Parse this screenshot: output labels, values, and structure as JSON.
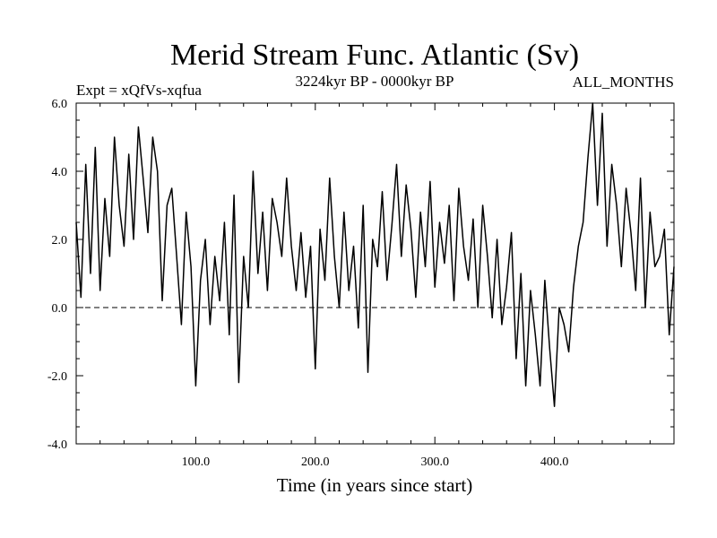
{
  "chart_data": {
    "type": "line",
    "title": "Merid Stream Func. Atlantic (Sv)",
    "subtitle_left": "Expt = xQfVs-xqfua",
    "subtitle_center": "3224kyr BP - 0000kyr BP",
    "subtitle_right": "ALL_MONTHS",
    "xlabel": "Time (in years since start)",
    "ylabel": "",
    "xlim": [
      0,
      500
    ],
    "ylim": [
      -4,
      6
    ],
    "x_tick_labels": [
      "100.0",
      "200.0",
      "300.0",
      "400.0"
    ],
    "x_tick_values": [
      100,
      200,
      300,
      400
    ],
    "y_tick_labels": [
      "-4.0",
      "-2.0",
      "0.0",
      "2.0",
      "4.0",
      "6.0"
    ],
    "y_tick_values": [
      -4,
      -2,
      0,
      2,
      4,
      6
    ],
    "reference_line": {
      "y": 0,
      "style": "dashed"
    },
    "series": [
      {
        "name": "Atlantic meridional stream function",
        "color": "#000000",
        "x": [
          0,
          4,
          8,
          12,
          16,
          20,
          24,
          28,
          32,
          36,
          40,
          44,
          48,
          52,
          56,
          60,
          64,
          68,
          72,
          76,
          80,
          84,
          88,
          92,
          96,
          100,
          104,
          108,
          112,
          116,
          120,
          124,
          128,
          132,
          136,
          140,
          144,
          148,
          152,
          156,
          160,
          164,
          168,
          172,
          176,
          180,
          184,
          188,
          192,
          196,
          200,
          204,
          208,
          212,
          216,
          220,
          224,
          228,
          232,
          236,
          240,
          244,
          248,
          252,
          256,
          260,
          264,
          268,
          272,
          276,
          280,
          284,
          288,
          292,
          296,
          300,
          304,
          308,
          312,
          316,
          320,
          324,
          328,
          332,
          336,
          340,
          344,
          348,
          352,
          356,
          360,
          364,
          368,
          372,
          376,
          380,
          384,
          388,
          392,
          396,
          400,
          404,
          408,
          412,
          416,
          420,
          424,
          428,
          432,
          436,
          440,
          444,
          448,
          452,
          456,
          460,
          464,
          468,
          472,
          476,
          480,
          484,
          488,
          492,
          496,
          500
        ],
        "values": [
          2.5,
          0.3,
          4.2,
          1.0,
          4.7,
          0.5,
          3.2,
          1.5,
          5.0,
          3.0,
          1.8,
          4.5,
          2.0,
          5.3,
          3.8,
          2.2,
          5.0,
          4.0,
          0.2,
          3.0,
          3.5,
          1.5,
          -0.5,
          2.8,
          1.2,
          -2.3,
          0.8,
          2.0,
          -0.5,
          1.5,
          0.2,
          2.5,
          -0.8,
          3.3,
          -2.2,
          1.5,
          0.0,
          4.0,
          1.0,
          2.8,
          0.5,
          3.2,
          2.5,
          1.5,
          3.8,
          1.8,
          0.5,
          2.2,
          0.3,
          1.8,
          -1.8,
          2.3,
          0.8,
          3.8,
          1.5,
          0.0,
          2.8,
          0.5,
          1.8,
          -0.6,
          3.0,
          -1.9,
          2.0,
          1.2,
          3.4,
          0.8,
          2.4,
          4.2,
          1.5,
          3.6,
          2.3,
          0.3,
          2.8,
          1.2,
          3.7,
          0.6,
          2.5,
          1.3,
          3.0,
          0.2,
          3.5,
          1.8,
          0.8,
          2.6,
          0.0,
          3.0,
          1.5,
          -0.3,
          2.0,
          -0.5,
          0.6,
          2.2,
          -1.5,
          1.0,
          -2.3,
          0.5,
          -0.8,
          -2.3,
          0.8,
          -1.2,
          -2.9,
          0.0,
          -0.5,
          -1.3,
          0.6,
          1.8,
          2.5,
          4.4,
          6.0,
          3.0,
          5.7,
          1.8,
          4.2,
          3.0,
          1.2,
          3.5,
          2.2,
          0.5,
          3.8,
          0.0,
          2.8,
          1.2,
          1.5,
          2.3,
          -0.8,
          1.2
        ]
      }
    ]
  }
}
